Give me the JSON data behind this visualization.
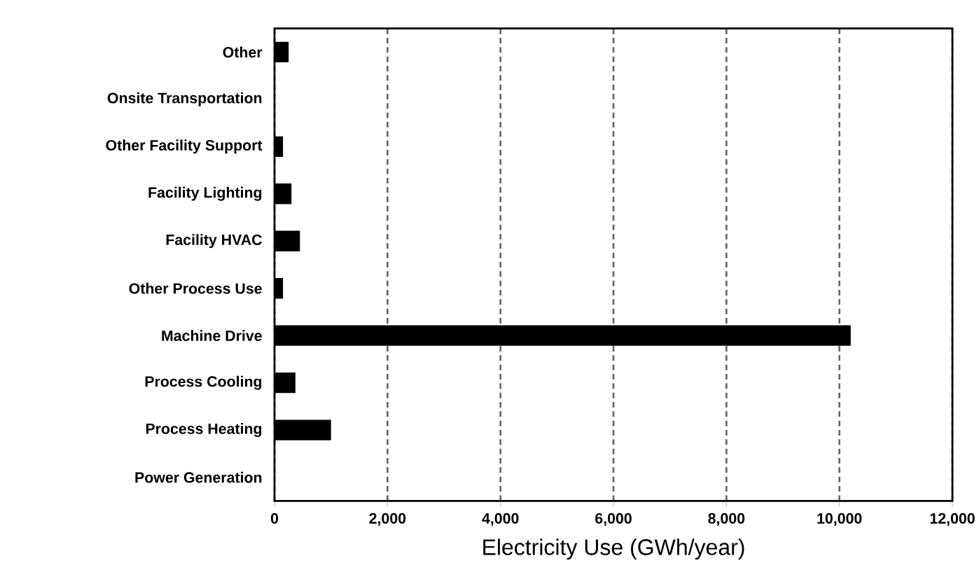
{
  "chart_data": {
    "type": "bar",
    "orientation": "horizontal",
    "categories": [
      "Other",
      "Onsite Transportation",
      "Other Facility Support",
      "Facility Lighting",
      "Facility HVAC",
      "Other Process Use",
      "Machine Drive",
      "Process Cooling",
      "Process Heating",
      "Power Generation"
    ],
    "values": [
      250,
      0,
      150,
      300,
      450,
      150,
      10200,
      370,
      1000,
      0
    ],
    "color": "#000000",
    "xlabel": "Electricity Use (GWh/year)",
    "xlim": [
      0,
      12000
    ],
    "xticks": [
      {
        "value": 0,
        "label": "0"
      },
      {
        "value": 2000,
        "label": "2,000"
      },
      {
        "value": 4000,
        "label": "4,000"
      },
      {
        "value": 6000,
        "label": "6,000"
      },
      {
        "value": 8000,
        "label": "8,000"
      },
      {
        "value": 10000,
        "label": "10,000"
      },
      {
        "value": 12000,
        "label": "12,000"
      }
    ],
    "grid": "x"
  }
}
